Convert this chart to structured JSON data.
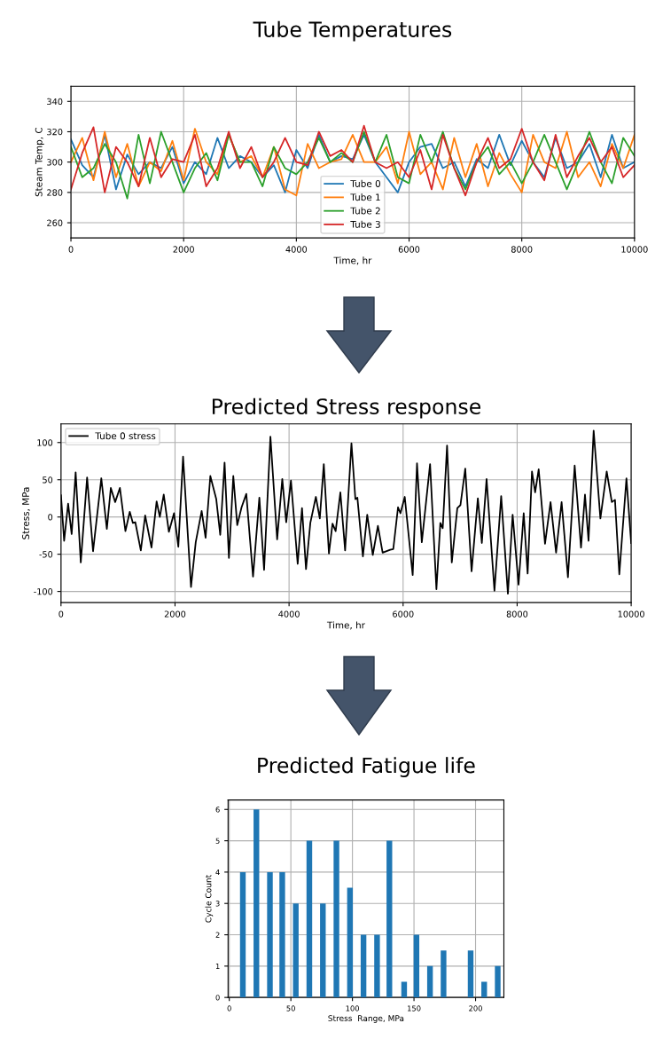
{
  "chart_data": [
    {
      "type": "line",
      "title": "Tube Temperatures",
      "xlabel": "Time, hr",
      "ylabel": "Steam Temp, C",
      "xlim": [
        0,
        10000
      ],
      "xticks": [
        0,
        2000,
        4000,
        6000,
        8000,
        10000
      ],
      "ylim": [
        250,
        350
      ],
      "yticks": [
        260,
        280,
        300,
        320,
        340
      ],
      "grid": true,
      "legend": "bottom",
      "x": [
        0,
        200,
        400,
        600,
        800,
        1000,
        1200,
        1400,
        1600,
        1800,
        2000,
        2200,
        2400,
        2600,
        2800,
        3000,
        3200,
        3400,
        3600,
        3800,
        4000,
        4200,
        4400,
        4600,
        4800,
        5000,
        5200,
        5400,
        5600,
        5800,
        6000,
        6200,
        6400,
        6600,
        6800,
        7000,
        7200,
        7400,
        7600,
        7800,
        8000,
        8200,
        8400,
        8600,
        8800,
        9000,
        9200,
        9400,
        9600,
        9800,
        10000
      ],
      "series": [
        {
          "name": "Tube 0",
          "color": "#1f77b4",
          "values": [
            315,
            298,
            290,
            318,
            282,
            305,
            292,
            300,
            296,
            310,
            286,
            300,
            292,
            316,
            296,
            304,
            300,
            290,
            298,
            280,
            308,
            296,
            318,
            300,
            304,
            302,
            318,
            300,
            290,
            280,
            300,
            310,
            312,
            296,
            300,
            284,
            302,
            296,
            318,
            298,
            314,
            300,
            290,
            316,
            296,
            300,
            312,
            290,
            318,
            296,
            300
          ]
        },
        {
          "name": "Tube 1",
          "color": "#ff7f0e",
          "values": [
            300,
            316,
            288,
            320,
            290,
            312,
            284,
            300,
            294,
            314,
            288,
            322,
            300,
            292,
            318,
            300,
            304,
            290,
            310,
            282,
            278,
            312,
            296,
            300,
            302,
            318,
            300,
            300,
            310,
            286,
            320,
            292,
            300,
            282,
            316,
            290,
            312,
            284,
            306,
            292,
            280,
            318,
            300,
            296,
            320,
            290,
            300,
            284,
            312,
            296,
            318
          ]
        },
        {
          "name": "Tube 2",
          "color": "#2ca02c",
          "values": [
            310,
            290,
            296,
            312,
            300,
            276,
            318,
            286,
            320,
            300,
            280,
            296,
            306,
            288,
            318,
            300,
            300,
            284,
            310,
            296,
            292,
            300,
            316,
            300,
            306,
            300,
            320,
            300,
            318,
            290,
            286,
            318,
            300,
            320,
            296,
            282,
            300,
            310,
            292,
            300,
            286,
            300,
            318,
            300,
            282,
            300,
            320,
            300,
            286,
            316,
            304
          ]
        },
        {
          "name": "Tube 3",
          "color": "#d62728",
          "values": [
            282,
            306,
            323,
            280,
            310,
            300,
            284,
            316,
            290,
            302,
            300,
            318,
            284,
            296,
            320,
            296,
            310,
            290,
            300,
            316,
            300,
            298,
            320,
            304,
            308,
            300,
            324,
            300,
            296,
            300,
            290,
            308,
            282,
            318,
            296,
            278,
            300,
            316,
            296,
            302,
            322,
            300,
            288,
            318,
            290,
            304,
            316,
            300,
            310,
            290,
            298
          ]
        }
      ]
    },
    {
      "type": "line",
      "title": "Predicted Stress response",
      "xlabel": "Time, hr",
      "ylabel": "Stress, MPa",
      "xlim": [
        0,
        10000
      ],
      "xticks": [
        0,
        2000,
        4000,
        6000,
        8000,
        10000
      ],
      "ylim": [
        -115,
        125
      ],
      "yticks": [
        -100,
        -50,
        0,
        50,
        100
      ],
      "grid": true,
      "legend": "top left",
      "series": [
        {
          "name": "Tube 0 stress",
          "color": "#000000",
          "x": [
            0,
            55,
            125,
            187,
            257,
            347,
            458,
            562,
            707,
            804,
            874,
            950,
            1033,
            1130,
            1206,
            1261,
            1303,
            1400,
            1476,
            1587,
            1677,
            1733,
            1802,
            1892,
            1982,
            2058,
            2141,
            2280,
            2363,
            2467,
            2536,
            2619,
            2723,
            2793,
            2869,
            2945,
            3022,
            3091,
            3167,
            3250,
            3368,
            3479,
            3562,
            3673,
            3791,
            3881,
            3950,
            4033,
            4151,
            4227,
            4297,
            4373,
            4470,
            4539,
            4609,
            4699,
            4762,
            4817,
            4900,
            4983,
            5094,
            5163,
            5198,
            5295,
            5371,
            5468,
            5558,
            5641,
            5773,
            5828,
            5911,
            5953,
            6029,
            6168,
            6244,
            6328,
            6473,
            6584,
            6653,
            6695,
            6771,
            6854,
            6951,
            7006,
            7090,
            7201,
            7311,
            7381,
            7464,
            7602,
            7720,
            7838,
            7921,
            8025,
            8115,
            8184,
            8260,
            8316,
            8378,
            8489,
            8586,
            8683,
            8780,
            8891,
            9009,
            9120,
            9190,
            9252,
            9342,
            9460,
            9571,
            9661,
            9716,
            9792,
            9917,
            10000
          ],
          "values": [
            29,
            -32,
            18,
            -23,
            60,
            -61,
            53,
            -46,
            52,
            -16,
            39,
            20,
            39,
            -19,
            7,
            -8,
            -7,
            -45,
            2,
            -41,
            21,
            0,
            30,
            -20,
            5,
            -40,
            81,
            -94,
            -34,
            8,
            -28,
            55,
            24,
            -24,
            73,
            -55,
            55,
            -11,
            13,
            31,
            -80,
            26,
            -71,
            108,
            -30,
            51,
            -7,
            49,
            -63,
            12,
            -70,
            -8,
            27,
            -2,
            71,
            -49,
            -9,
            -19,
            33,
            -45,
            99,
            24,
            26,
            -53,
            3,
            -51,
            -12,
            -48,
            -44,
            -43,
            13,
            5,
            27,
            -78,
            72,
            -34,
            71,
            -97,
            -8,
            -15,
            96,
            -61,
            12,
            16,
            65,
            -73,
            25,
            -35,
            51,
            -99,
            28,
            -103,
            3,
            -91,
            5,
            -76,
            61,
            33,
            64,
            -36,
            20,
            -48,
            20,
            -81,
            69,
            -41,
            30,
            -32,
            116,
            -2,
            61,
            20,
            23,
            -77,
            52,
            -35
          ]
        }
      ]
    },
    {
      "type": "bar",
      "title": "Predicted Fatigue life",
      "xlabel": "Stress  Range, MPa",
      "ylabel": "Cycle Count",
      "xlim": [
        -1,
        223
      ],
      "xticks": [
        0,
        50,
        100,
        150,
        200
      ],
      "ylim": [
        0,
        6.3
      ],
      "yticks": [
        0,
        1,
        2,
        3,
        4,
        5,
        6
      ],
      "grid": true,
      "color": "#1f77b4",
      "x": [
        11,
        22,
        33,
        43,
        54,
        65,
        76,
        87,
        98,
        109,
        120,
        130,
        142,
        152,
        163,
        174,
        196,
        207,
        218
      ],
      "values": [
        4,
        6,
        4,
        4,
        3,
        5,
        3,
        5,
        3.5,
        2,
        2,
        5,
        0.5,
        2,
        1,
        1.5,
        1.5,
        0.5,
        1
      ]
    }
  ]
}
